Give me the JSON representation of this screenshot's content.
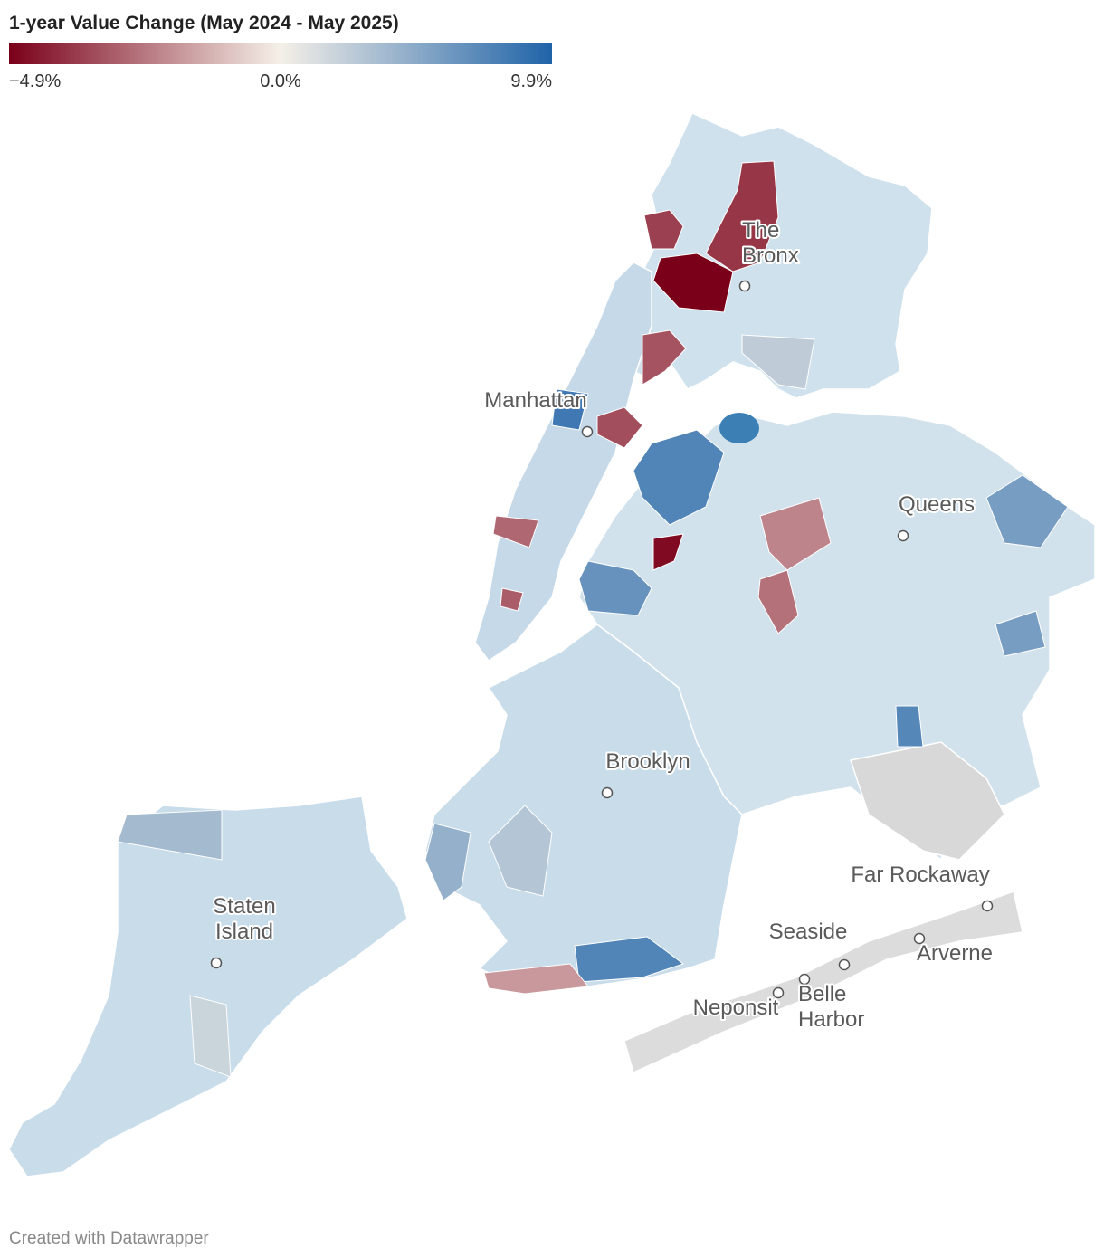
{
  "title": "1-year Value Change (May 2024 - May 2025)",
  "legend": {
    "ticks": [
      {
        "value": -4.9,
        "label": "−4.9%"
      },
      {
        "value": 0,
        "label": "0.0%"
      },
      {
        "value": 9.9,
        "label": "9.9%"
      }
    ],
    "colors": [
      "#7a0019",
      "#f5f0e8",
      "#1f63a8"
    ]
  },
  "region_values": [
    -3.6,
    -4.9,
    -3.8,
    -3.2,
    -3.3,
    8.4,
    7.6,
    -2.2,
    -2.6,
    -4.7,
    7.6,
    -1.8,
    6.6,
    5.8,
    7.4,
    3.8,
    5.8,
    -2.8,
    -3.0,
    2.5,
    2.0,
    4.5,
    3.0
  ],
  "places": [
    {
      "lines": [
        "The",
        "Bronx"
      ]
    },
    {
      "lines": [
        "Manhattan"
      ]
    },
    {
      "lines": [
        "Queens"
      ]
    },
    {
      "lines": [
        "Brooklyn"
      ]
    },
    {
      "lines": [
        "Staten",
        "Island"
      ]
    },
    {
      "lines": [
        "Far Rockaway"
      ]
    },
    {
      "lines": [
        "Seaside"
      ]
    },
    {
      "lines": [
        "Arverne"
      ]
    },
    {
      "lines": [
        "Neponsit"
      ]
    },
    {
      "lines": [
        "Belle",
        "Harbor"
      ]
    }
  ],
  "footer": "Created with Datawrapper"
}
